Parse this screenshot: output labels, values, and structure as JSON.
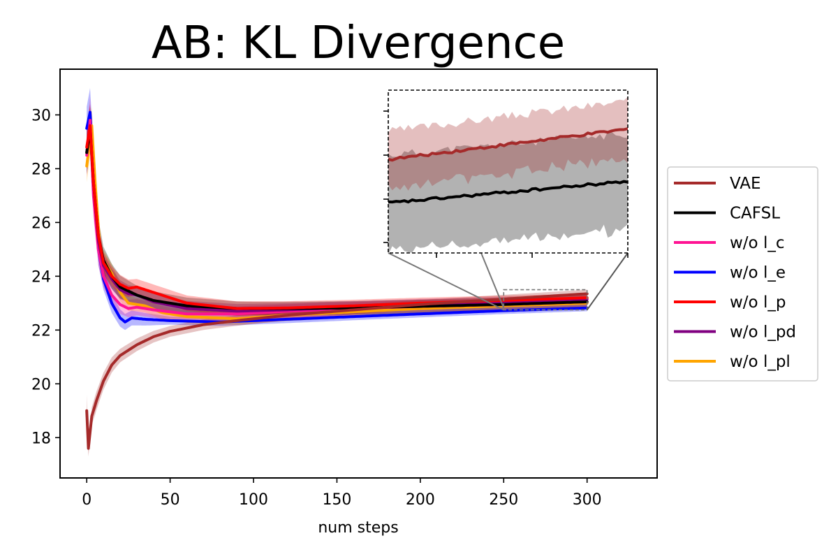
{
  "chart_data": {
    "type": "line",
    "title": "AB: KL Divergence",
    "xlabel": "num steps",
    "ylabel": "",
    "xlim": [
      -16,
      342
    ],
    "ylim": [
      16.5,
      31.7
    ],
    "xticks": [
      0,
      50,
      100,
      150,
      200,
      250,
      300
    ],
    "yticks": [
      18,
      20,
      22,
      24,
      26,
      28,
      30
    ],
    "grid": false,
    "legend": "outside-right",
    "series": [
      {
        "name": "VAE",
        "color": "#a52a2a",
        "points": [
          [
            0,
            19.0
          ],
          [
            1,
            17.6
          ],
          [
            3,
            18.8
          ],
          [
            6,
            19.4
          ],
          [
            10,
            20.1
          ],
          [
            15,
            20.7
          ],
          [
            20,
            21.05
          ],
          [
            30,
            21.45
          ],
          [
            40,
            21.75
          ],
          [
            50,
            21.95
          ],
          [
            70,
            22.2
          ],
          [
            90,
            22.35
          ],
          [
            120,
            22.55
          ],
          [
            150,
            22.7
          ],
          [
            200,
            22.95
          ],
          [
            250,
            23.15
          ],
          [
            300,
            23.35
          ]
        ],
        "band": [
          [
            0,
            0.6
          ],
          [
            1,
            0.3
          ],
          [
            5,
            0.35
          ],
          [
            20,
            0.25
          ],
          [
            50,
            0.2
          ],
          [
            300,
            0.15
          ]
        ]
      },
      {
        "name": "CAFSL",
        "color": "#000000",
        "points": [
          [
            0,
            28.6
          ],
          [
            2,
            29.5
          ],
          [
            4,
            27.5
          ],
          [
            7,
            25.5
          ],
          [
            10,
            24.6
          ],
          [
            15,
            24.0
          ],
          [
            20,
            23.6
          ],
          [
            25,
            23.45
          ],
          [
            30,
            23.3
          ],
          [
            40,
            23.1
          ],
          [
            60,
            22.9
          ],
          [
            90,
            22.8
          ],
          [
            120,
            22.8
          ],
          [
            160,
            22.82
          ],
          [
            200,
            22.88
          ],
          [
            250,
            22.95
          ],
          [
            300,
            23.05
          ]
        ],
        "band": [
          [
            0,
            0.8
          ],
          [
            3,
            0.8
          ],
          [
            10,
            0.5
          ],
          [
            30,
            0.35
          ],
          [
            100,
            0.25
          ],
          [
            300,
            0.25
          ]
        ]
      },
      {
        "name": "w/o l_c",
        "color": "#ff1493",
        "points": [
          [
            0,
            28.5
          ],
          [
            2,
            29.8
          ],
          [
            4,
            27.0
          ],
          [
            7,
            25.0
          ],
          [
            10,
            24.0
          ],
          [
            15,
            23.3
          ],
          [
            20,
            22.95
          ],
          [
            25,
            22.8
          ],
          [
            30,
            22.85
          ],
          [
            40,
            22.75
          ],
          [
            60,
            22.6
          ],
          [
            90,
            22.6
          ],
          [
            120,
            22.7
          ],
          [
            160,
            22.8
          ],
          [
            200,
            22.88
          ],
          [
            250,
            22.95
          ],
          [
            300,
            23.05
          ]
        ],
        "band": [
          [
            0,
            0.8
          ],
          [
            3,
            0.9
          ],
          [
            10,
            0.4
          ],
          [
            30,
            0.3
          ],
          [
            300,
            0.18
          ]
        ]
      },
      {
        "name": "w/o l_e",
        "color": "#0000ff",
        "points": [
          [
            0,
            29.5
          ],
          [
            2,
            30.1
          ],
          [
            4,
            28.0
          ],
          [
            7,
            25.0
          ],
          [
            10,
            23.9
          ],
          [
            15,
            23.0
          ],
          [
            20,
            22.45
          ],
          [
            23,
            22.3
          ],
          [
            27,
            22.45
          ],
          [
            35,
            22.4
          ],
          [
            50,
            22.35
          ],
          [
            80,
            22.3
          ],
          [
            120,
            22.4
          ],
          [
            160,
            22.5
          ],
          [
            200,
            22.6
          ],
          [
            250,
            22.72
          ],
          [
            300,
            22.82
          ]
        ],
        "band": [
          [
            0,
            0.8
          ],
          [
            2,
            0.9
          ],
          [
            10,
            0.4
          ],
          [
            23,
            0.3
          ],
          [
            50,
            0.15
          ],
          [
            300,
            0.12
          ]
        ]
      },
      {
        "name": "w/o l_p",
        "color": "#ff0000",
        "points": [
          [
            0,
            28.8
          ],
          [
            2,
            29.6
          ],
          [
            4,
            27.5
          ],
          [
            7,
            25.5
          ],
          [
            10,
            24.5
          ],
          [
            15,
            24.0
          ],
          [
            20,
            23.7
          ],
          [
            25,
            23.55
          ],
          [
            30,
            23.6
          ],
          [
            40,
            23.4
          ],
          [
            60,
            23.0
          ],
          [
            90,
            22.8
          ],
          [
            120,
            22.82
          ],
          [
            160,
            22.9
          ],
          [
            200,
            23.0
          ],
          [
            250,
            23.1
          ],
          [
            300,
            23.2
          ]
        ],
        "band": [
          [
            0,
            0.8
          ],
          [
            3,
            0.8
          ],
          [
            10,
            0.4
          ],
          [
            30,
            0.3
          ],
          [
            300,
            0.15
          ]
        ]
      },
      {
        "name": "w/o l_pd",
        "color": "#800080",
        "points": [
          [
            0,
            28.6
          ],
          [
            2,
            29.6
          ],
          [
            4,
            27.5
          ],
          [
            7,
            25.3
          ],
          [
            10,
            24.4
          ],
          [
            15,
            23.9
          ],
          [
            20,
            23.5
          ],
          [
            25,
            23.35
          ],
          [
            30,
            23.3
          ],
          [
            40,
            23.05
          ],
          [
            60,
            22.8
          ],
          [
            90,
            22.7
          ],
          [
            120,
            22.75
          ],
          [
            160,
            22.85
          ],
          [
            200,
            22.95
          ],
          [
            250,
            23.05
          ],
          [
            300,
            23.15
          ]
        ],
        "band": [
          [
            0,
            0.8
          ],
          [
            3,
            0.8
          ],
          [
            10,
            0.4
          ],
          [
            30,
            0.3
          ],
          [
            300,
            0.15
          ]
        ]
      },
      {
        "name": "w/o l_pl",
        "color": "#ffa500",
        "points": [
          [
            0,
            28.1
          ],
          [
            3,
            29.6
          ],
          [
            5,
            27.5
          ],
          [
            8,
            25.0
          ],
          [
            10,
            24.6
          ],
          [
            15,
            24.1
          ],
          [
            20,
            23.4
          ],
          [
            25,
            23.0
          ],
          [
            30,
            22.95
          ],
          [
            35,
            22.9
          ],
          [
            45,
            22.65
          ],
          [
            60,
            22.5
          ],
          [
            90,
            22.42
          ],
          [
            120,
            22.55
          ],
          [
            160,
            22.68
          ],
          [
            200,
            22.8
          ],
          [
            250,
            22.9
          ],
          [
            300,
            23.0
          ]
        ],
        "band": [
          [
            0,
            0.6
          ],
          [
            3,
            0.7
          ],
          [
            10,
            0.4
          ],
          [
            30,
            0.25
          ],
          [
            300,
            0.15
          ]
        ]
      }
    ],
    "inset": {
      "xlim": [
        250,
        322
      ],
      "ylim": [
        22.75,
        23.5
      ],
      "source_region_x": [
        250,
        300
      ],
      "source_region_y": [
        22.75,
        23.5
      ],
      "series": [
        {
          "name": "VAE",
          "color": "#a52a2a",
          "start": 23.18,
          "end": 23.32,
          "band_half": 0.13,
          "seed": 3
        },
        {
          "name": "CAFSL",
          "color": "#000000",
          "start": 22.98,
          "end": 23.08,
          "band_half": 0.22,
          "seed": 11
        }
      ]
    }
  }
}
